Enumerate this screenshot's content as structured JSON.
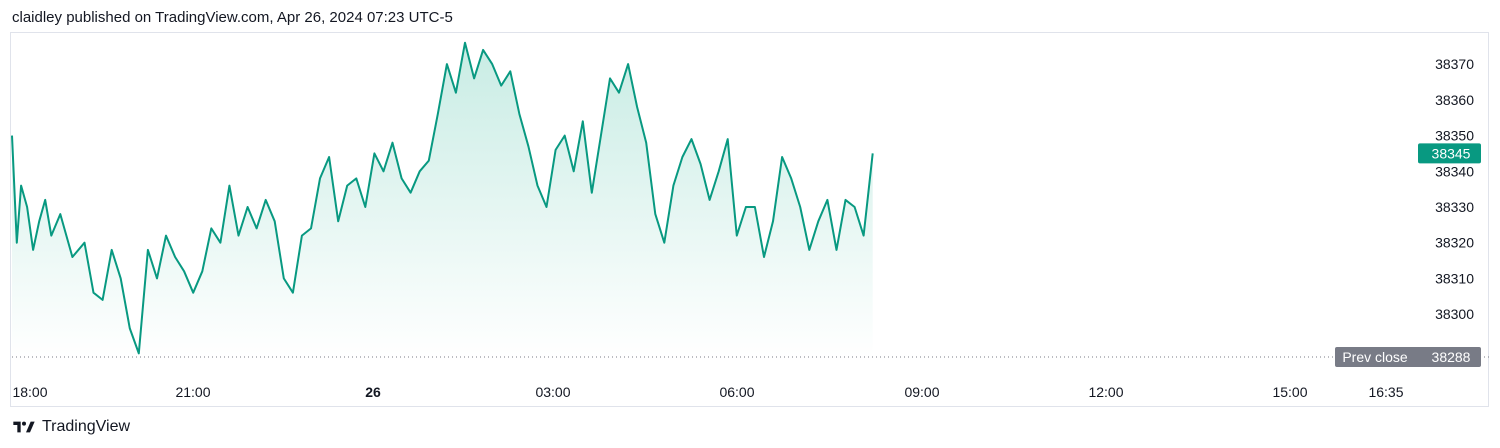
{
  "header": {
    "text": "claidley published on TradingView.com, Apr 26, 2024 07:23 UTC-5"
  },
  "footer": {
    "brand": "TradingView"
  },
  "colors": {
    "line": "#089981",
    "fill_top": "#c8ece4",
    "fill_bottom": "#ffffff",
    "prev_close_tag": "#787b86",
    "last_price_tag": "#089981"
  },
  "chart_data": {
    "type": "area",
    "x_ticks": [
      {
        "label": "18:00",
        "bold": false
      },
      {
        "label": "21:00",
        "bold": false
      },
      {
        "label": "26",
        "bold": true
      },
      {
        "label": "03:00",
        "bold": false
      },
      {
        "label": "06:00",
        "bold": false
      },
      {
        "label": "09:00",
        "bold": false
      },
      {
        "label": "12:00",
        "bold": false
      },
      {
        "label": "15:00",
        "bold": false
      },
      {
        "label": "16:35",
        "bold": false
      }
    ],
    "y_ticks": [
      "38370",
      "38360",
      "38350",
      "38340",
      "38330",
      "38320",
      "38310",
      "38300"
    ],
    "ylim": [
      38288,
      38378
    ],
    "x_range_hours": [
      0,
      23.9
    ],
    "prev_close": {
      "label": "Prev close",
      "value": "38288"
    },
    "last_price": "38345",
    "series": [
      {
        "x_hours": [
          0,
          0.08,
          0.15,
          0.25,
          0.35,
          0.45,
          0.55,
          0.65,
          0.8,
          1.0,
          1.2,
          1.35,
          1.5,
          1.65,
          1.8,
          1.95,
          2.1,
          2.25,
          2.4,
          2.55,
          2.7,
          2.85,
          3.0,
          3.15,
          3.3,
          3.45,
          3.6,
          3.75,
          3.9,
          4.05,
          4.2,
          4.35,
          4.5,
          4.65,
          4.8,
          4.95,
          5.1,
          5.25,
          5.4,
          5.55,
          5.7,
          5.85,
          6.0,
          6.15,
          6.3,
          6.45,
          6.6,
          6.75,
          6.9,
          7.05,
          7.2,
          7.35,
          7.5,
          7.65,
          7.8,
          7.95,
          8.1,
          8.25,
          8.4,
          8.55,
          8.7,
          8.85,
          9.0,
          9.15,
          9.3,
          9.45,
          9.6,
          9.75,
          9.9,
          10.05,
          10.2,
          10.35,
          10.5,
          10.65,
          10.8,
          10.95,
          11.1,
          11.25,
          11.4,
          11.55,
          11.7,
          11.85,
          12.0,
          12.15,
          12.3,
          12.45,
          12.6,
          12.75,
          12.9,
          13.05,
          13.2,
          13.35,
          13.5,
          13.65,
          13.8,
          13.95,
          14.1,
          14.25
        ],
        "values": [
          38350,
          38320,
          38336,
          38330,
          38318,
          38326,
          38332,
          38322,
          38328,
          38316,
          38320,
          38306,
          38304,
          38318,
          38310,
          38296,
          38289,
          38318,
          38310,
          38322,
          38316,
          38312,
          38306,
          38312,
          38324,
          38320,
          38336,
          38322,
          38330,
          38324,
          38332,
          38326,
          38310,
          38306,
          38322,
          38324,
          38338,
          38344,
          38326,
          38336,
          38338,
          38330,
          38345,
          38340,
          38348,
          38338,
          38334,
          38340,
          38343,
          38356,
          38370,
          38362,
          38376,
          38366,
          38374,
          38370,
          38364,
          38368,
          38356,
          38347,
          38336,
          38330,
          38346,
          38350,
          38340,
          38354,
          38334,
          38350,
          38366,
          38362,
          38370,
          38358,
          38348,
          38328,
          38320,
          38336,
          38344,
          38349,
          38342,
          38332,
          38340,
          38349,
          38322,
          38330,
          38330,
          38316,
          38326,
          38344,
          38338,
          38330,
          38318,
          38326,
          38332,
          38318,
          38332,
          38330,
          38322,
          38345
        ]
      }
    ]
  }
}
